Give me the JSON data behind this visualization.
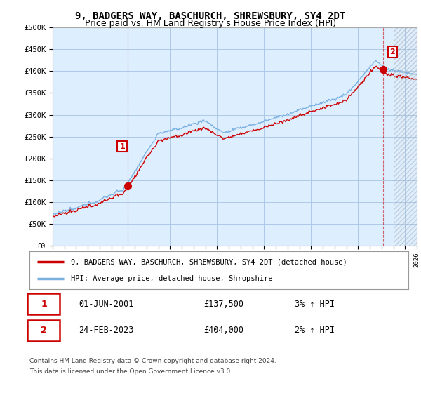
{
  "title": "9, BADGERS WAY, BASCHURCH, SHREWSBURY, SY4 2DT",
  "subtitle": "Price paid vs. HM Land Registry's House Price Index (HPI)",
  "title_fontsize": 10,
  "subtitle_fontsize": 9,
  "ylim": [
    0,
    500000
  ],
  "yticks": [
    0,
    50000,
    100000,
    150000,
    200000,
    250000,
    300000,
    350000,
    400000,
    450000,
    500000
  ],
  "ytick_labels": [
    "£0",
    "£50K",
    "£100K",
    "£150K",
    "£200K",
    "£250K",
    "£300K",
    "£350K",
    "£400K",
    "£450K",
    "£500K"
  ],
  "xlim_start": 1995,
  "xlim_end": 2026,
  "hpi_color": "#7ab0e0",
  "price_color": "#cc0000",
  "grid_color": "#aec8e8",
  "background_color": "#ffffff",
  "plot_bg_color": "#ddeeff",
  "sale1_year": 2001.42,
  "sale1_price": 137500,
  "sale2_year": 2023.13,
  "sale2_price": 404000,
  "legend_line1": "9, BADGERS WAY, BASCHURCH, SHREWSBURY, SY4 2DT (detached house)",
  "legend_line2": "HPI: Average price, detached house, Shropshire",
  "table_row1": [
    "1",
    "01-JUN-2001",
    "£137,500",
    "3% ↑ HPI"
  ],
  "table_row2": [
    "2",
    "24-FEB-2023",
    "£404,000",
    "2% ↑ HPI"
  ],
  "footnote1": "Contains HM Land Registry data © Crown copyright and database right 2024.",
  "footnote2": "This data is licensed under the Open Government Licence v3.0."
}
